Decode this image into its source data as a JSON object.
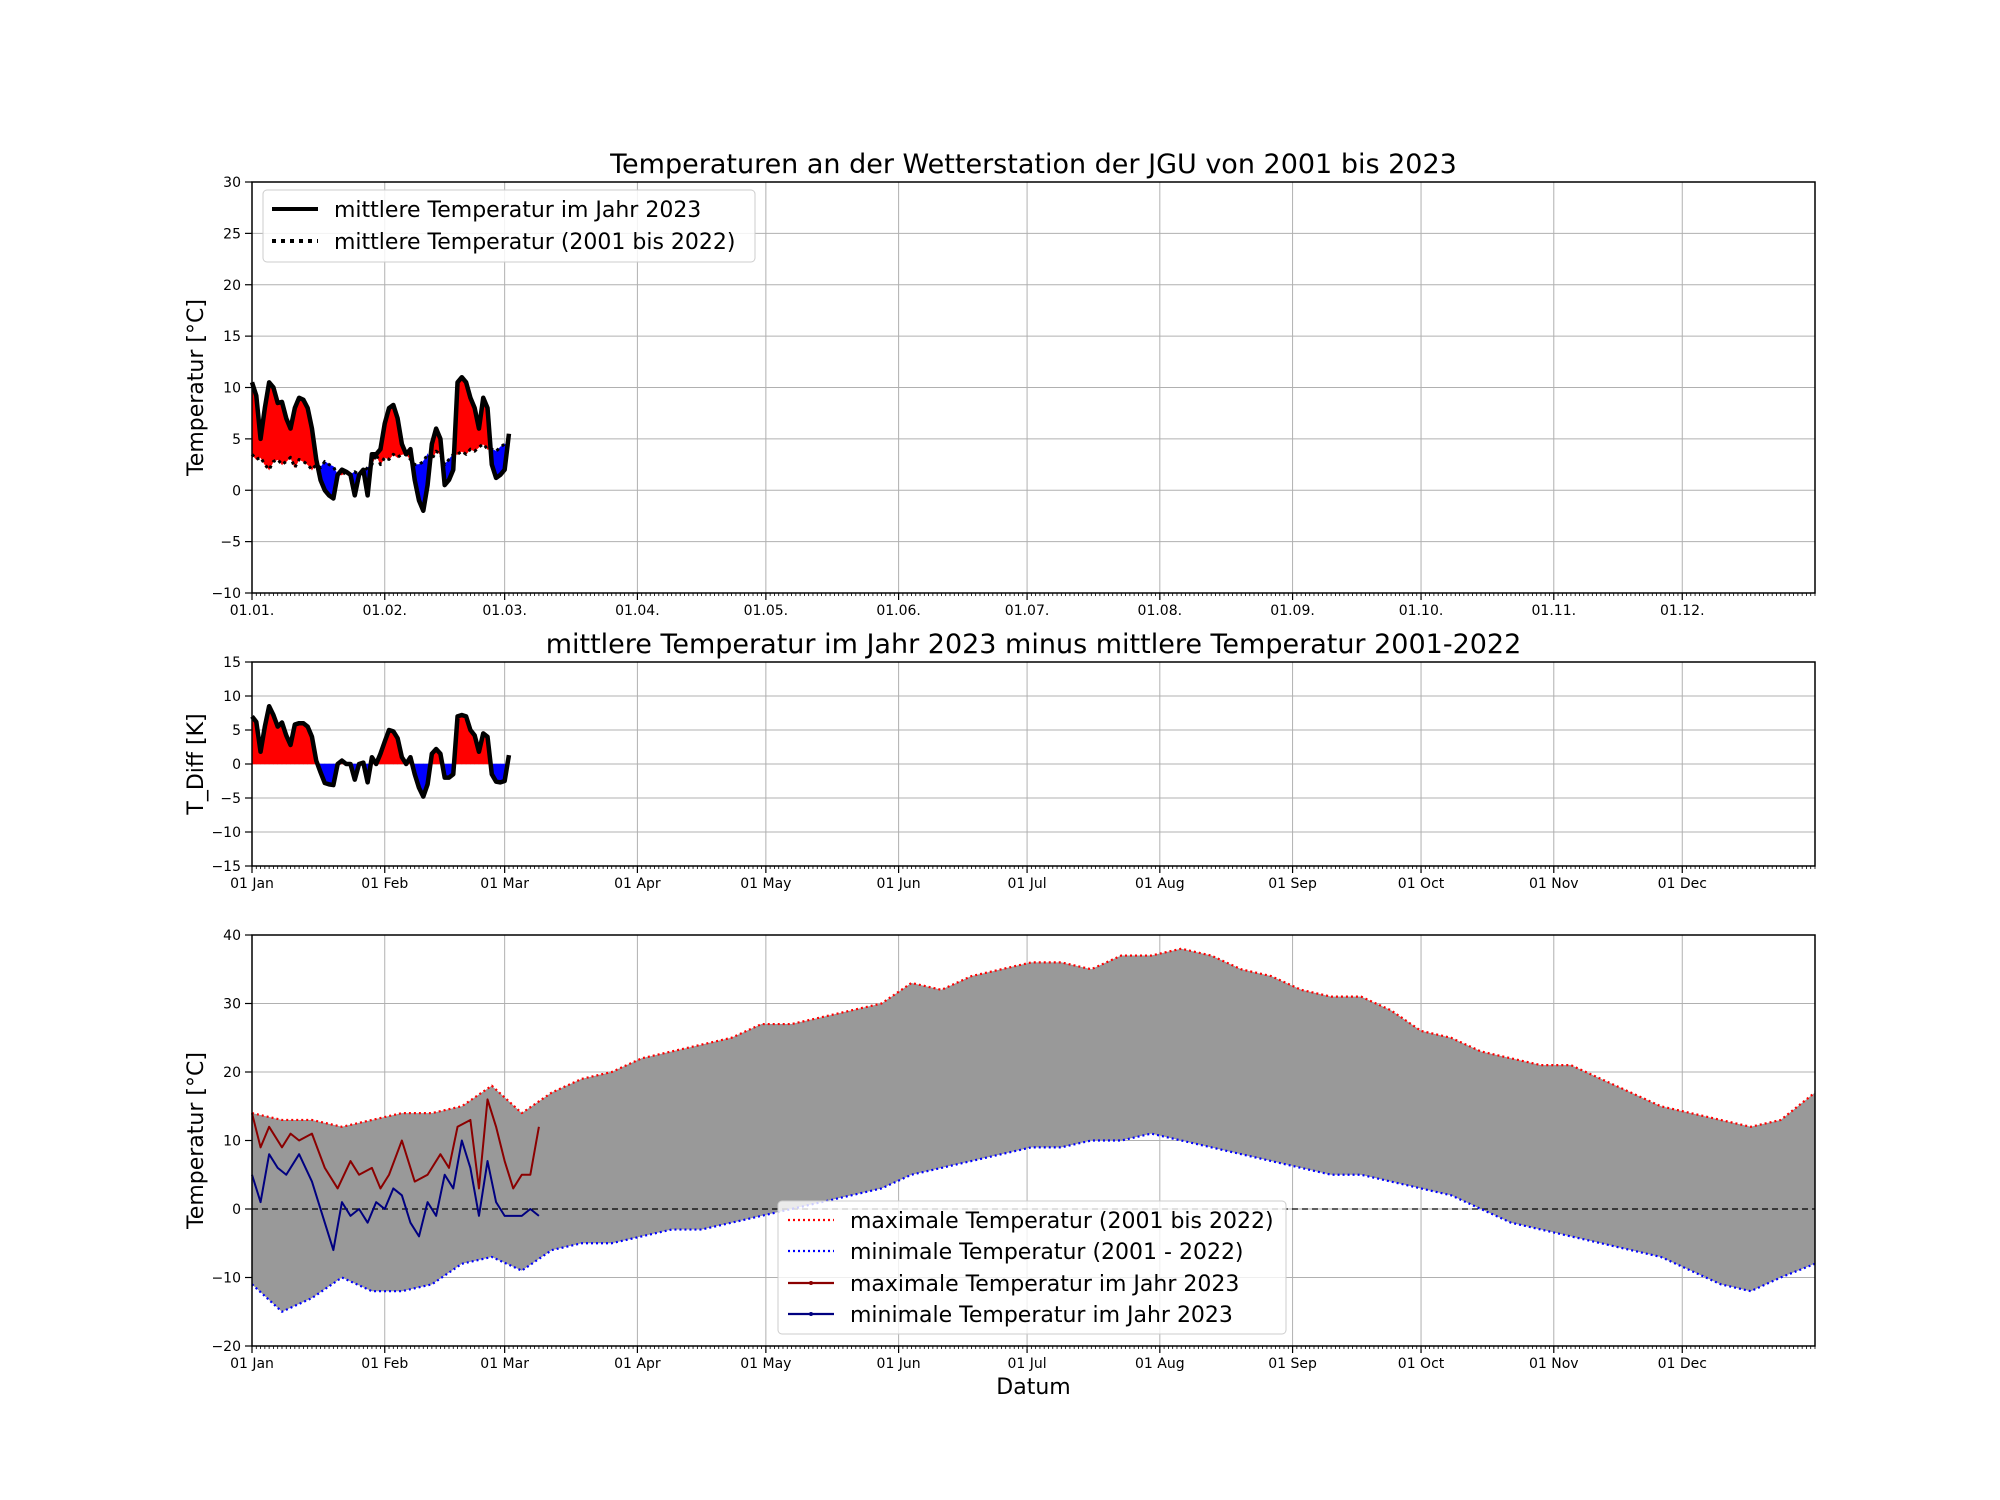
{
  "chart_data": [
    {
      "type": "line",
      "title": "Temperaturen an der Wetterstation der JGU von 2001 bis 2023",
      "xlabel": "",
      "ylabel": "Temperatur [°C]",
      "ylim": [
        -10,
        30
      ],
      "xlim_days": [
        1,
        366
      ],
      "yticks": [
        "−10",
        "−5",
        "0",
        "5",
        "10",
        "15",
        "20",
        "25",
        "30"
      ],
      "xtick_labels": [
        "01.01.",
        "01.02.",
        "01.03.",
        "01.04.",
        "01.05.",
        "01.06.",
        "01.07.",
        "01.08.",
        "01.09.",
        "01.10.",
        "01.11.",
        "01.12."
      ],
      "grid": true,
      "legend_position": "top-left",
      "fill_colors": {
        "above": "#ff0000",
        "below": "#0000ff"
      },
      "series": [
        {
          "name": "mittlere Temperatur im Jahr 2023",
          "style": "solid",
          "color": "#000000",
          "x": [
            1,
            2,
            3,
            4,
            5,
            6,
            7,
            8,
            9,
            10,
            11,
            12,
            13,
            14,
            15,
            16,
            17,
            18,
            19,
            20,
            21,
            22,
            23,
            24,
            25,
            26,
            27,
            28,
            29,
            30,
            31,
            32,
            33,
            34,
            35,
            36,
            37,
            38,
            39,
            40,
            41,
            42,
            43,
            44,
            45,
            46,
            47,
            48,
            49,
            50,
            51,
            52,
            53,
            54,
            55,
            56,
            57,
            58,
            59,
            60,
            61
          ],
          "y": [
            10.5,
            9.2,
            5.0,
            8.0,
            10.5,
            10.0,
            8.5,
            8.6,
            7.0,
            6.0,
            8.0,
            9.0,
            8.8,
            8.0,
            6.0,
            3.0,
            1.0,
            0.0,
            -0.5,
            -0.8,
            1.5,
            2.0,
            1.8,
            1.5,
            -0.5,
            1.5,
            2.0,
            -0.5,
            3.5,
            3.5,
            4.0,
            6.5,
            8.0,
            8.3,
            7.0,
            4.5,
            3.5,
            4.0,
            1.0,
            -1.0,
            -2.0,
            0.5,
            4.5,
            6.0,
            5.0,
            0.5,
            1.0,
            2.0,
            10.5,
            11.0,
            10.5,
            9.0,
            8.0,
            6.0,
            9.0,
            8.0,
            2.5,
            1.2,
            1.5,
            2.0,
            5.5
          ]
        },
        {
          "name": "mittlere Temperatur (2001 bis 2022)",
          "style": "dotted",
          "color": "#000000",
          "x": [
            1,
            2,
            3,
            4,
            5,
            6,
            7,
            8,
            9,
            10,
            11,
            12,
            13,
            14,
            15,
            16,
            17,
            18,
            19,
            20,
            21,
            22,
            23,
            24,
            25,
            26,
            27,
            28,
            29,
            30,
            31,
            32,
            33,
            34,
            35,
            36,
            37,
            38,
            39,
            40,
            41,
            42,
            43,
            44,
            45,
            46,
            47,
            48,
            49,
            50,
            51,
            52,
            53,
            54,
            55,
            56,
            57,
            58,
            59,
            60,
            61
          ],
          "y": [
            3.5,
            3.0,
            3.2,
            2.5,
            2.0,
            2.8,
            3.0,
            2.5,
            2.8,
            3.2,
            2.2,
            3.0,
            2.8,
            2.5,
            2.0,
            2.5,
            2.2,
            2.8,
            2.5,
            2.3,
            1.5,
            1.5,
            1.8,
            1.5,
            1.8,
            1.5,
            1.8,
            2.2,
            2.5,
            3.5,
            2.5,
            3.2,
            3.0,
            3.5,
            3.2,
            3.5,
            3.5,
            3.0,
            2.5,
            2.5,
            2.8,
            3.5,
            3.0,
            3.8,
            3.5,
            2.5,
            3.0,
            3.5,
            3.5,
            3.8,
            3.5,
            4.0,
            3.8,
            4.2,
            4.5,
            4.0,
            4.0,
            3.8,
            4.2,
            4.5,
            4.2
          ]
        }
      ]
    },
    {
      "type": "line",
      "title": "mittlere Temperatur im Jahr 2023 minus mittlere Temperatur 2001-2022",
      "xlabel": "",
      "ylabel": "T_Diff [K]",
      "ylim": [
        -15,
        15
      ],
      "xlim_days": [
        1,
        366
      ],
      "yticks": [
        "−15",
        "−10",
        "−5",
        "0",
        "5",
        "10",
        "15"
      ],
      "xtick_labels": [
        "01 Jan",
        "01 Feb",
        "01 Mar",
        "01 Apr",
        "01 May",
        "01 Jun",
        "01 Jul",
        "01 Aug",
        "01 Sep",
        "01 Oct",
        "01 Nov",
        "01 Dec"
      ],
      "grid": true,
      "fill_colors": {
        "above": "#ff0000",
        "below": "#0000ff"
      },
      "series": [
        {
          "style": "solid",
          "color": "#000000",
          "x": [
            1,
            2,
            3,
            4,
            5,
            6,
            7,
            8,
            9,
            10,
            11,
            12,
            13,
            14,
            15,
            16,
            17,
            18,
            19,
            20,
            21,
            22,
            23,
            24,
            25,
            26,
            27,
            28,
            29,
            30,
            31,
            32,
            33,
            34,
            35,
            36,
            37,
            38,
            39,
            40,
            41,
            42,
            43,
            44,
            45,
            46,
            47,
            48,
            49,
            50,
            51,
            52,
            53,
            54,
            55,
            56,
            57,
            58,
            59,
            60,
            61
          ],
          "y": [
            7.0,
            6.2,
            1.8,
            5.5,
            8.5,
            7.2,
            5.5,
            6.1,
            4.2,
            2.8,
            5.8,
            6.0,
            6.0,
            5.5,
            4.0,
            0.5,
            -1.2,
            -2.8,
            -3.0,
            -3.1,
            0.0,
            0.5,
            0.0,
            0.0,
            -2.3,
            0.0,
            0.2,
            -2.7,
            1.0,
            0.0,
            1.5,
            3.3,
            5.0,
            4.8,
            3.8,
            1.0,
            0.0,
            1.0,
            -1.5,
            -3.5,
            -4.8,
            -3.0,
            1.5,
            2.2,
            1.5,
            -2.0,
            -2.0,
            -1.5,
            7.0,
            7.2,
            7.0,
            5.0,
            4.2,
            1.8,
            4.5,
            4.0,
            -1.5,
            -2.6,
            -2.7,
            -2.5,
            1.3
          ]
        }
      ]
    },
    {
      "type": "line",
      "title": "",
      "xlabel": "Datum",
      "ylabel": "Temperatur [°C]",
      "ylim": [
        -20,
        40
      ],
      "xlim_days": [
        1,
        366
      ],
      "yticks": [
        "−20",
        "−10",
        "0",
        "10",
        "20",
        "30",
        "40"
      ],
      "xtick_labels": [
        "01 Jan",
        "01 Feb",
        "01 Mar",
        "01 Apr",
        "01 May",
        "01 Jun",
        "01 Jul",
        "01 Aug",
        "01 Sep",
        "01 Oct",
        "01 Nov",
        "01 Dec"
      ],
      "grid": true,
      "zero_line": "dashed",
      "band_color": "#999999",
      "legend_position": "lower-center",
      "series": [
        {
          "name": "maximale Temperatur (2001 bis 2022)",
          "style": "dotted",
          "color": "#ff0000",
          "x": [
            1,
            8,
            15,
            22,
            29,
            36,
            43,
            50,
            57,
            64,
            71,
            78,
            85,
            92,
            99,
            106,
            113,
            120,
            127,
            134,
            141,
            148,
            155,
            162,
            169,
            176,
            183,
            190,
            197,
            204,
            211,
            218,
            225,
            232,
            239,
            246,
            253,
            260,
            267,
            274,
            281,
            288,
            295,
            302,
            309,
            316,
            323,
            330,
            337,
            344,
            351,
            358,
            366
          ],
          "y": [
            14,
            13,
            13,
            12,
            13,
            14,
            14,
            15,
            18,
            14,
            17,
            19,
            20,
            22,
            23,
            24,
            25,
            27,
            27,
            28,
            29,
            30,
            33,
            32,
            34,
            35,
            36,
            36,
            35,
            37,
            37,
            38,
            37,
            35,
            34,
            32,
            31,
            31,
            29,
            26,
            25,
            23,
            22,
            21,
            21,
            19,
            17,
            15,
            14,
            13,
            12,
            13,
            17
          ]
        },
        {
          "name": "minimale Temperatur (2001 - 2022)",
          "style": "dotted",
          "color": "#0000ff",
          "x": [
            1,
            8,
            15,
            22,
            29,
            36,
            43,
            50,
            57,
            64,
            71,
            78,
            85,
            92,
            99,
            106,
            113,
            120,
            127,
            134,
            141,
            148,
            155,
            162,
            169,
            176,
            183,
            190,
            197,
            204,
            211,
            218,
            225,
            232,
            239,
            246,
            253,
            260,
            267,
            274,
            281,
            288,
            295,
            302,
            309,
            316,
            323,
            330,
            337,
            344,
            351,
            358,
            366
          ],
          "y": [
            -11,
            -15,
            -13,
            -10,
            -12,
            -12,
            -11,
            -8,
            -7,
            -9,
            -6,
            -5,
            -5,
            -4,
            -3,
            -3,
            -2,
            -1,
            0,
            1,
            2,
            3,
            5,
            6,
            7,
            8,
            9,
            9,
            10,
            10,
            11,
            10,
            9,
            8,
            7,
            6,
            5,
            5,
            4,
            3,
            2,
            0,
            -2,
            -3,
            -4,
            -5,
            -6,
            -7,
            -9,
            -11,
            -12,
            -10,
            -8
          ]
        },
        {
          "name": "maximale Temperatur im Jahr 2023",
          "style": "solid",
          "color": "#8b0000",
          "x": [
            1,
            3,
            5,
            8,
            10,
            12,
            15,
            18,
            21,
            24,
            26,
            29,
            31,
            33,
            36,
            39,
            42,
            45,
            47,
            49,
            52,
            54,
            56,
            58,
            60,
            62,
            64,
            66,
            68
          ],
          "y": [
            14,
            9,
            12,
            9,
            11,
            10,
            11,
            6,
            3,
            7,
            5,
            6,
            3,
            5,
            10,
            4,
            5,
            8,
            6,
            12,
            13,
            3,
            16,
            12,
            7,
            3,
            5,
            5,
            12
          ]
        },
        {
          "name": "minimale Temperatur im Jahr 2023",
          "style": "solid",
          "color": "#000080",
          "x": [
            1,
            3,
            5,
            7,
            9,
            12,
            15,
            18,
            20,
            22,
            24,
            26,
            28,
            30,
            32,
            34,
            36,
            38,
            40,
            42,
            44,
            46,
            48,
            50,
            52,
            54,
            56,
            58,
            60,
            62,
            64,
            66,
            68
          ],
          "y": [
            5,
            1,
            8,
            6,
            5,
            8,
            4,
            -2,
            -6,
            1,
            -1,
            0,
            -2,
            1,
            0,
            3,
            2,
            -2,
            -4,
            1,
            -1,
            5,
            3,
            10,
            6,
            -1,
            7,
            1,
            -1,
            -1,
            -1,
            0,
            -1
          ]
        }
      ]
    }
  ]
}
